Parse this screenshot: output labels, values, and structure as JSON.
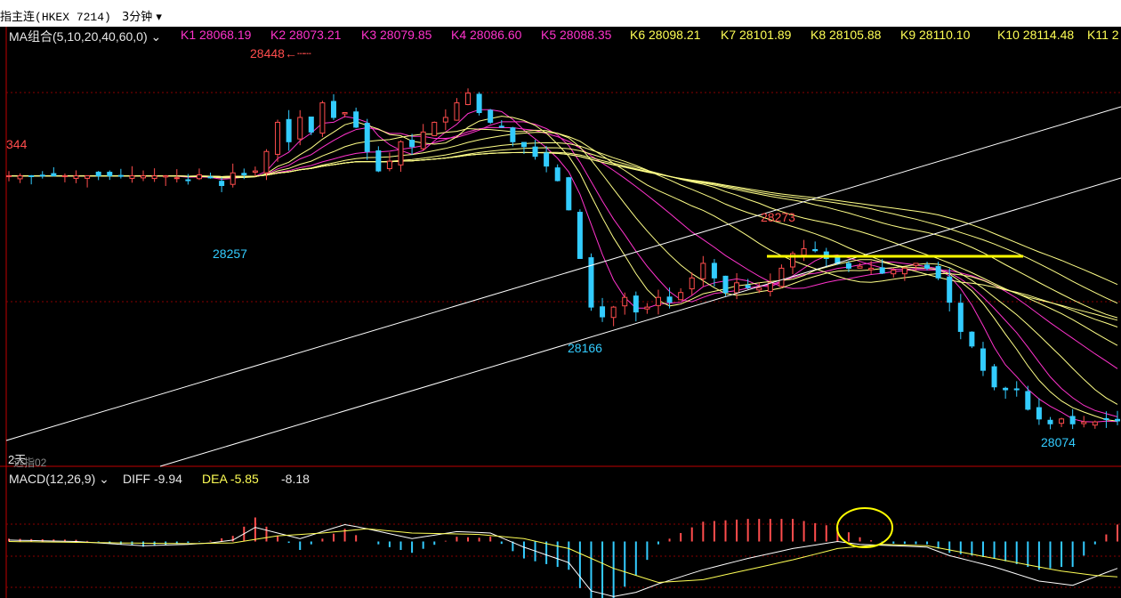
{
  "window": {
    "title_prefix": "指主连",
    "symbol": "(HKEX 7214)",
    "period": "3分钟",
    "period_arrow": "▾"
  },
  "ma": {
    "label": "MA组合(5,10,20,40,60,0)",
    "arrow": "⌄",
    "values": [
      {
        "k": "K1",
        "v": "28068.19"
      },
      {
        "k": "K2",
        "v": "28073.21"
      },
      {
        "k": "K3",
        "v": "28079.85"
      },
      {
        "k": "K4",
        "v": "28086.60"
      },
      {
        "k": "K5",
        "v": "28088.35"
      },
      {
        "k": "K6",
        "v": "28098.21"
      },
      {
        "k": "K7",
        "v": "28101.89"
      },
      {
        "k": "K8",
        "v": "28105.88"
      },
      {
        "k": "K9",
        "v": "28110.10"
      },
      {
        "k": "K10",
        "v": "28114.48"
      },
      {
        "k": "K11",
        "v": "2"
      }
    ]
  },
  "macd": {
    "label": "MACD(12,26,9)",
    "arrow": "⌄",
    "diff_label": "DIFF",
    "diff_value": "-9.94",
    "dea_label": "DEA",
    "dea_value": "-5.85",
    "macd_value": "-8.18"
  },
  "annotations": {
    "high_label": "28448",
    "high_arrow": "←",
    "low1": "28257",
    "low2": "28166",
    "peak2": "28273",
    "low3": "28074",
    "left_edge_value": "344",
    "sub_label": "2天",
    "sub_label2": "远指02"
  },
  "colors": {
    "up": "#ff4d4d",
    "down": "#33ccff",
    "ma_light": "#ffff88",
    "ma_pink": "#ff33cc",
    "highlight": "#ffff00"
  },
  "chart_data": {
    "type": "candlestick",
    "ylim": [
      28040,
      28470
    ],
    "price_path": [
      [
        0,
        28335
      ],
      [
        14,
        28335
      ],
      [
        15,
        28333
      ],
      [
        16,
        28330
      ],
      [
        17,
        28336
      ],
      [
        18,
        28333
      ],
      [
        19,
        28325
      ],
      [
        20,
        28338
      ],
      [
        21,
        28336
      ],
      [
        22,
        28340
      ],
      [
        23,
        28360
      ],
      [
        24,
        28390
      ],
      [
        25,
        28370
      ],
      [
        26,
        28395
      ],
      [
        27,
        28380
      ],
      [
        28,
        28410
      ],
      [
        29,
        28395
      ],
      [
        30,
        28400
      ],
      [
        31,
        28385
      ],
      [
        32,
        28360
      ],
      [
        33,
        28340
      ],
      [
        34,
        28350
      ],
      [
        35,
        28370
      ],
      [
        36,
        28365
      ],
      [
        37,
        28380
      ],
      [
        38,
        28390
      ],
      [
        39,
        28395
      ],
      [
        40,
        28410
      ],
      [
        41,
        28420
      ],
      [
        42,
        28400
      ],
      [
        43,
        28390
      ],
      [
        44,
        28385
      ],
      [
        45,
        28370
      ],
      [
        46,
        28365
      ],
      [
        47,
        28355
      ],
      [
        48,
        28345
      ],
      [
        49,
        28330
      ],
      [
        50,
        28300
      ],
      [
        51,
        28250
      ],
      [
        52,
        28200
      ],
      [
        53,
        28190
      ],
      [
        54,
        28200
      ],
      [
        55,
        28210
      ],
      [
        56,
        28195
      ],
      [
        57,
        28200
      ],
      [
        58,
        28210
      ],
      [
        59,
        28205
      ],
      [
        60,
        28215
      ],
      [
        61,
        28230
      ],
      [
        62,
        28245
      ],
      [
        63,
        28230
      ],
      [
        64,
        28215
      ],
      [
        65,
        28225
      ],
      [
        66,
        28220
      ],
      [
        67,
        28220
      ],
      [
        68,
        28225
      ],
      [
        69,
        28240
      ],
      [
        70,
        28255
      ],
      [
        71,
        28260
      ],
      [
        72,
        28258
      ],
      [
        73,
        28250
      ],
      [
        74,
        28245
      ],
      [
        75,
        28240
      ],
      [
        76,
        28242
      ],
      [
        77,
        28240
      ],
      [
        78,
        28235
      ],
      [
        79,
        28238
      ],
      [
        80,
        28240
      ],
      [
        81,
        28245
      ],
      [
        82,
        28240
      ],
      [
        83,
        28230
      ],
      [
        84,
        28205
      ],
      [
        85,
        28175
      ],
      [
        86,
        28160
      ],
      [
        87,
        28135
      ],
      [
        88,
        28118
      ],
      [
        89,
        28115
      ],
      [
        90,
        28115
      ],
      [
        91,
        28095
      ],
      [
        92,
        28085
      ],
      [
        93,
        28080
      ],
      [
        94,
        28085
      ],
      [
        95,
        28080
      ],
      [
        96,
        28082
      ],
      [
        97,
        28082
      ],
      [
        98,
        28085
      ],
      [
        99,
        28083
      ]
    ],
    "n_bars": 100,
    "macd_ylim": [
      -80,
      80
    ],
    "macd_diff": [
      [
        0,
        2
      ],
      [
        6,
        0
      ],
      [
        12,
        -6
      ],
      [
        16,
        -4
      ],
      [
        18,
        -2
      ],
      [
        20,
        2
      ],
      [
        22,
        20
      ],
      [
        24,
        12
      ],
      [
        26,
        4
      ],
      [
        30,
        24
      ],
      [
        32,
        18
      ],
      [
        36,
        4
      ],
      [
        40,
        14
      ],
      [
        43,
        12
      ],
      [
        46,
        -8
      ],
      [
        50,
        -30
      ],
      [
        52,
        -70
      ],
      [
        54,
        -78
      ],
      [
        56,
        -72
      ],
      [
        58,
        -60
      ],
      [
        62,
        -40
      ],
      [
        66,
        -24
      ],
      [
        70,
        -10
      ],
      [
        74,
        0
      ],
      [
        76,
        -4
      ],
      [
        79,
        -6
      ],
      [
        82,
        -8
      ],
      [
        84,
        -20
      ],
      [
        88,
        -36
      ],
      [
        92,
        -56
      ],
      [
        95,
        -62
      ],
      [
        97,
        -50
      ],
      [
        99,
        -38
      ]
    ],
    "macd_dea": [
      [
        0,
        0
      ],
      [
        10,
        -2
      ],
      [
        16,
        -3
      ],
      [
        20,
        -2
      ],
      [
        24,
        8
      ],
      [
        28,
        12
      ],
      [
        32,
        18
      ],
      [
        36,
        12
      ],
      [
        42,
        10
      ],
      [
        46,
        4
      ],
      [
        50,
        -10
      ],
      [
        54,
        -38
      ],
      [
        58,
        -58
      ],
      [
        62,
        -54
      ],
      [
        66,
        -40
      ],
      [
        70,
        -26
      ],
      [
        74,
        -10
      ],
      [
        78,
        -4
      ],
      [
        82,
        -6
      ],
      [
        86,
        -18
      ],
      [
        90,
        -30
      ],
      [
        94,
        -42
      ],
      [
        97,
        -48
      ],
      [
        99,
        -50
      ]
    ]
  }
}
